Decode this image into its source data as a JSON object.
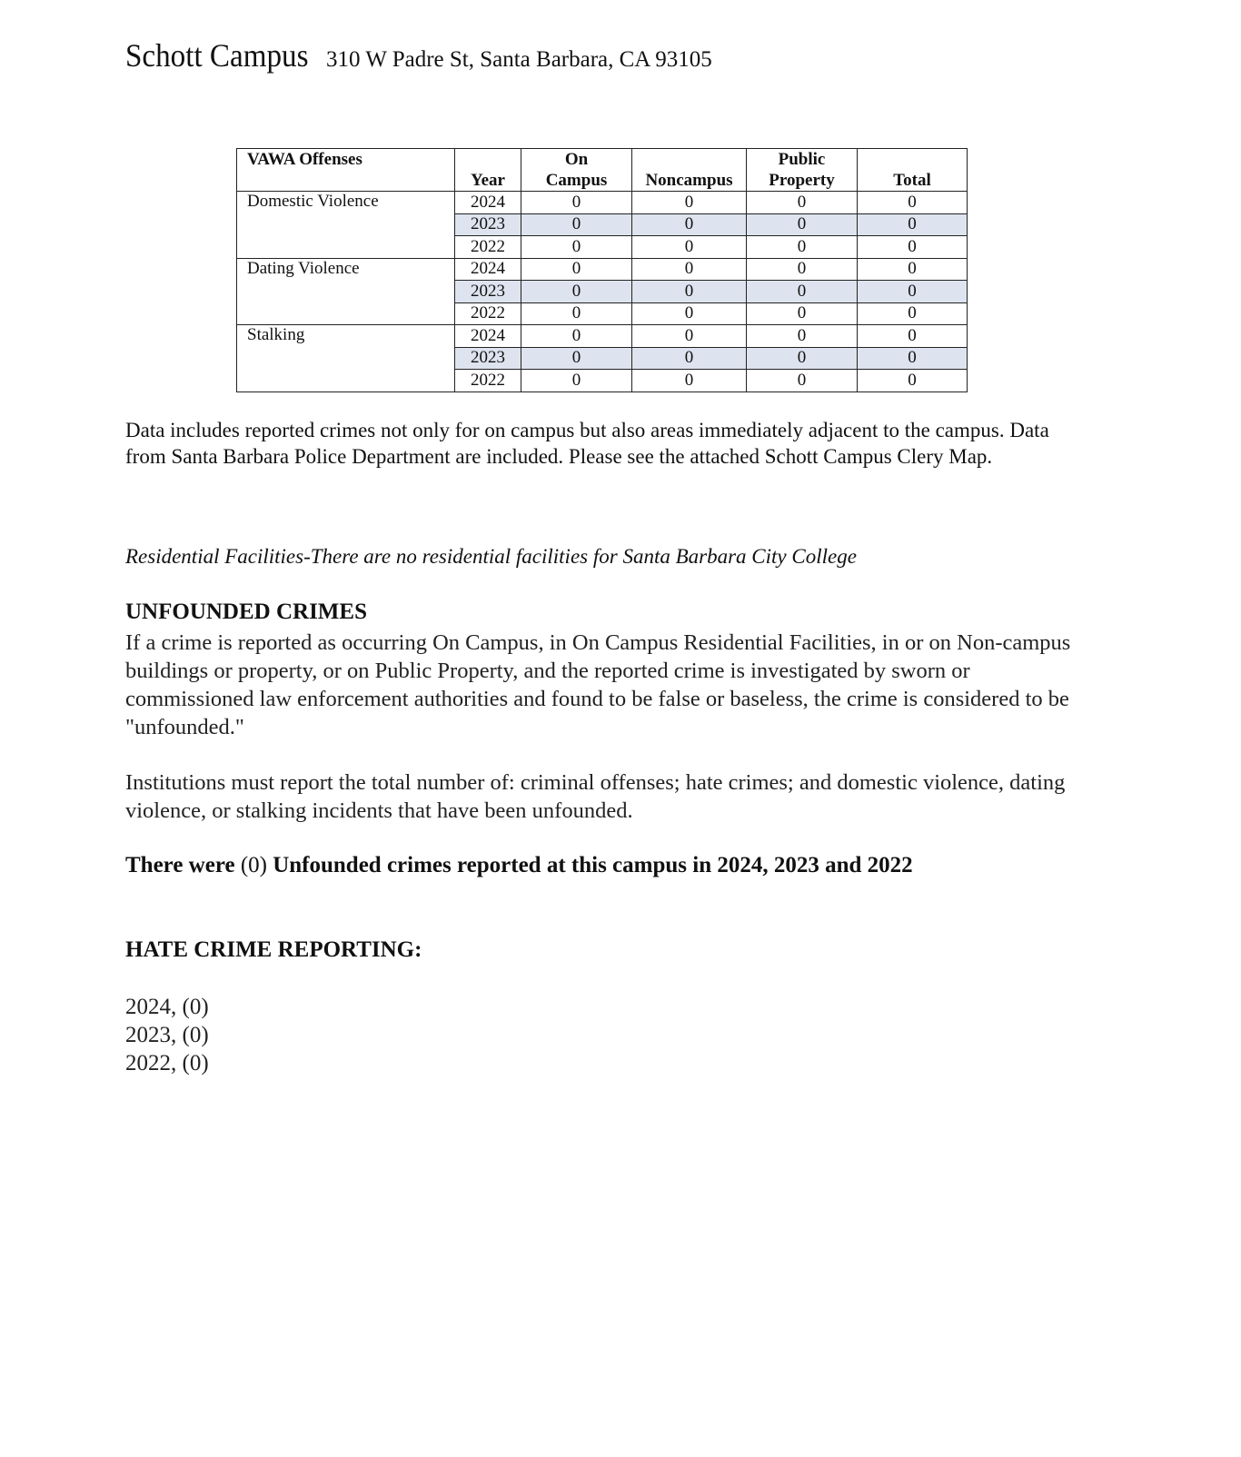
{
  "title": {
    "campus": "Schott Campus",
    "address": "310 W Padre St, Santa Barbara, CA 93105"
  },
  "table": {
    "headers": [
      "VAWA Offenses",
      "Year",
      "On Campus",
      "Noncampus",
      "Public Property",
      "Total"
    ],
    "header_lines": [
      [
        "VAWA Offenses"
      ],
      [
        "Year"
      ],
      [
        "On",
        "Campus"
      ],
      [
        "Noncampus"
      ],
      [
        "Public",
        "Property"
      ],
      [
        "Total"
      ]
    ],
    "shaded_row_color": "#dde4ef",
    "groups": [
      {
        "offense": "Domestic Violence",
        "rows": [
          {
            "year": "2024",
            "on_campus": "0",
            "noncampus": "0",
            "public_property": "0",
            "total": "0"
          },
          {
            "year": "2023",
            "on_campus": "0",
            "noncampus": "0",
            "public_property": "0",
            "total": "0"
          },
          {
            "year": "2022",
            "on_campus": "0",
            "noncampus": "0",
            "public_property": "0",
            "total": "0"
          }
        ]
      },
      {
        "offense": "Dating Violence",
        "rows": [
          {
            "year": "2024",
            "on_campus": "0",
            "noncampus": "0",
            "public_property": "0",
            "total": "0"
          },
          {
            "year": "2023",
            "on_campus": "0",
            "noncampus": "0",
            "public_property": "0",
            "total": "0"
          },
          {
            "year": "2022",
            "on_campus": "0",
            "noncampus": "0",
            "public_property": "0",
            "total": "0"
          }
        ]
      },
      {
        "offense": "Stalking",
        "rows": [
          {
            "year": "2024",
            "on_campus": "0",
            "noncampus": "0",
            "public_property": "0",
            "total": "0"
          },
          {
            "year": "2023",
            "on_campus": "0",
            "noncampus": "0",
            "public_property": "0",
            "total": "0"
          },
          {
            "year": "2022",
            "on_campus": "0",
            "noncampus": "0",
            "public_property": "0",
            "total": "0"
          }
        ]
      }
    ]
  },
  "note": "Data includes reported crimes not only for on campus but also areas immediately adjacent to the campus. Data from Santa Barbara Police Department are included.  Please see the attached Schott Campus Clery Map.",
  "residential": "Residential Facilities-There are no residential facilities for Santa Barbara City College",
  "unfounded": {
    "heading": "UNFOUNDED CRIMES",
    "paragraph": "If a crime is reported as occurring On Campus, in On Campus Residential Facilities, in or on Non-campus buildings or property, or on Public Property, and the reported crime is investigated by sworn or commissioned law enforcement authorities and found to be false or baseless, the crime is considered to be \"unfounded.\"",
    "institutions": "Institutions must report the total number of: criminal offenses; hate crimes; and domestic violence, dating violence, or stalking incidents that have been unfounded.",
    "statement_a": "There were ",
    "statement_count": "(0)",
    "statement_b": " Unfounded crimes reported at this campus in 2024, 2023 and 2022"
  },
  "hate": {
    "heading": "HATE CRIME REPORTING:",
    "items": [
      "2024, (0)",
      "2023, (0)",
      "2022, (0)"
    ]
  }
}
